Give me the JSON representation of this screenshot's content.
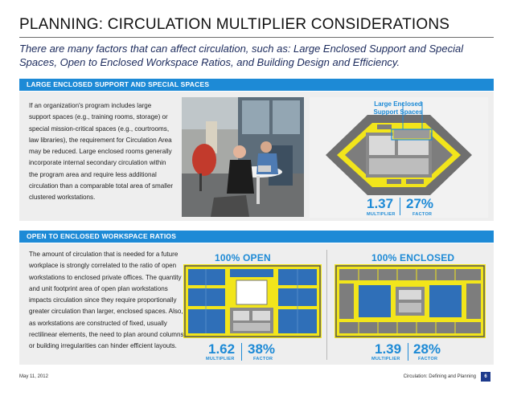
{
  "page": {
    "title": "PLANNING:  CIRCULATION MULTIPLIER CONSIDERATIONS",
    "subtitle": "There are many factors that can affect circulation, such as:  Large Enclosed Support and Special Spaces, Open to Enclosed Workspace Ratios, and Building Design and Efficiency."
  },
  "section1": {
    "header": "LARGE ENCLOSED SUPPORT AND SPECIAL SPACES",
    "body": "If an organization's program includes large support spaces (e.g., training rooms, storage) or special mission-critical spaces (e.g., courtrooms, law libraries), the requirement for Circulation Area may be reduced.  Large enclosed rooms generally incorporate internal secondary circulation within the program area and require less additional circulation than a comparable total area of smaller clustered workstations.",
    "callout": "Large Enclosed Support Spaces",
    "multiplier_value": "1.37",
    "multiplier_label": "MULTIPLIER",
    "factor_value": "27%",
    "factor_label": "FACTOR"
  },
  "section2": {
    "header": "OPEN TO ENCLOSED WORKSPACE RATIOS",
    "body": "The amount of circulation that is needed for a future workplace is strongly correlated to the ratio of open workstations to enclosed private offices. The quantity and unit footprint area of open plan workstations impacts circulation since they require proportionally greater circulation than larger, enclosed spaces.  Also, as workstations are constructed of fixed, usually rectilinear elements, the need to plan around columns or building irregularities can hinder efficient layouts.",
    "open": {
      "heading": "100% OPEN",
      "multiplier_value": "1.62",
      "multiplier_label": "MULTIPLIER",
      "factor_value": "38%",
      "factor_label": "FACTOR"
    },
    "enclosed": {
      "heading": "100% ENCLOSED",
      "multiplier_value": "1.39",
      "multiplier_label": "MULTIPLIER",
      "factor_value": "28%",
      "factor_label": "FACTOR"
    }
  },
  "footer": {
    "date": "May 11, 2012",
    "doc_title": "Circulation: Defining and Planning",
    "page_number": "6"
  },
  "colors": {
    "accent": "#1d8ad6",
    "circulation": "#f2e51b",
    "workstation": "#2f6fb8",
    "room": "#777777",
    "navy": "#1b2a5c"
  }
}
